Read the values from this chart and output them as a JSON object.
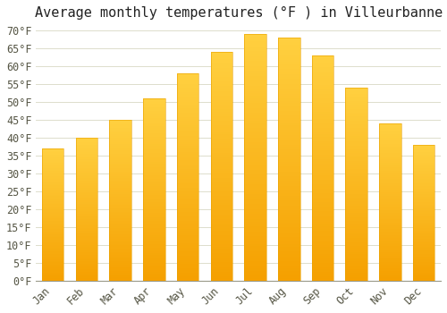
{
  "title": "Average monthly temperatures (°F ) in Villeurbanne",
  "months": [
    "Jan",
    "Feb",
    "Mar",
    "Apr",
    "May",
    "Jun",
    "Jul",
    "Aug",
    "Sep",
    "Oct",
    "Nov",
    "Dec"
  ],
  "values": [
    37,
    40,
    45,
    51,
    58,
    64,
    69,
    68,
    63,
    54,
    44,
    38
  ],
  "bar_color_top": "#FFD040",
  "bar_color_bottom": "#F5A000",
  "background_color": "#FFFFFF",
  "grid_color": "#DDDDCC",
  "ylim": [
    0,
    71
  ],
  "yticks": [
    0,
    5,
    10,
    15,
    20,
    25,
    30,
    35,
    40,
    45,
    50,
    55,
    60,
    65,
    70
  ],
  "ylabel_suffix": "°F",
  "title_fontsize": 11,
  "tick_fontsize": 8.5,
  "font_family": "monospace",
  "title_color": "#222222",
  "tick_color": "#555544",
  "bar_width": 0.65
}
